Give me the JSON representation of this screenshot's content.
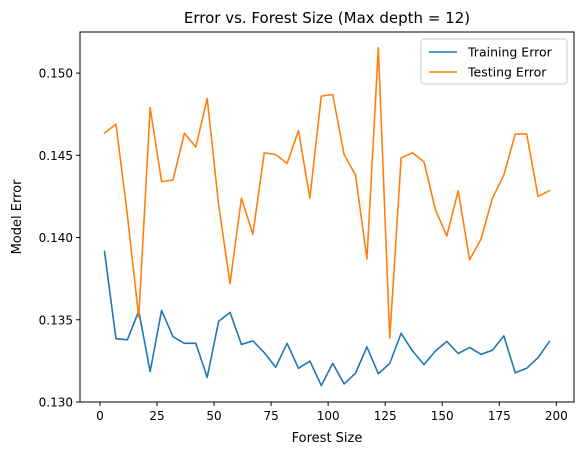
{
  "chart_data": {
    "type": "line",
    "title": "Error vs. Forest Size (Max depth = 12)",
    "xlabel": "Forest Size",
    "ylabel": "Model Error",
    "xlim": [
      -8.75,
      207.75
    ],
    "ylim": [
      0.13,
      0.1525
    ],
    "xticks": [
      0,
      25,
      50,
      75,
      100,
      125,
      150,
      175,
      200
    ],
    "yticks": [
      0.13,
      0.135,
      0.14,
      0.145,
      0.15
    ],
    "ytick_labels": [
      "0.130",
      "0.135",
      "0.140",
      "0.145",
      "0.150"
    ],
    "grid": false,
    "legend_position": "upper-right",
    "x": [
      2,
      7,
      12,
      17,
      22,
      27,
      32,
      37,
      42,
      47,
      52,
      57,
      62,
      67,
      72,
      77,
      82,
      87,
      92,
      97,
      102,
      107,
      112,
      117,
      122,
      127,
      132,
      137,
      142,
      147,
      152,
      157,
      162,
      167,
      172,
      177,
      182,
      187,
      192,
      197
    ],
    "series": [
      {
        "name": "Training Error",
        "color": "#1f77b4",
        "values": [
          0.13915,
          0.13385,
          0.13378,
          0.13553,
          0.13185,
          0.13557,
          0.13397,
          0.13357,
          0.13357,
          0.1315,
          0.1349,
          0.13545,
          0.1335,
          0.13372,
          0.133,
          0.13211,
          0.13357,
          0.13205,
          0.13249,
          0.131,
          0.13235,
          0.1311,
          0.13175,
          0.13335,
          0.13172,
          0.13235,
          0.13418,
          0.1331,
          0.13227,
          0.1331,
          0.13368,
          0.13295,
          0.13332,
          0.1329,
          0.13315,
          0.13402,
          0.13178,
          0.13205,
          0.1327,
          0.13368
        ]
      },
      {
        "name": "Testing Error",
        "color": "#ff7f0e",
        "values": [
          0.14635,
          0.1469,
          0.1414,
          0.13515,
          0.1479,
          0.1434,
          0.1435,
          0.14635,
          0.1455,
          0.14845,
          0.142,
          0.1372,
          0.1424,
          0.1402,
          0.14515,
          0.14505,
          0.1445,
          0.1465,
          0.1424,
          0.1486,
          0.1487,
          0.14505,
          0.1438,
          0.1387,
          0.15155,
          0.1339,
          0.14485,
          0.14515,
          0.1446,
          0.1417,
          0.1401,
          0.14285,
          0.13865,
          0.1399,
          0.1424,
          0.1438,
          0.1463,
          0.1463,
          0.1425,
          0.14285
        ]
      }
    ]
  }
}
